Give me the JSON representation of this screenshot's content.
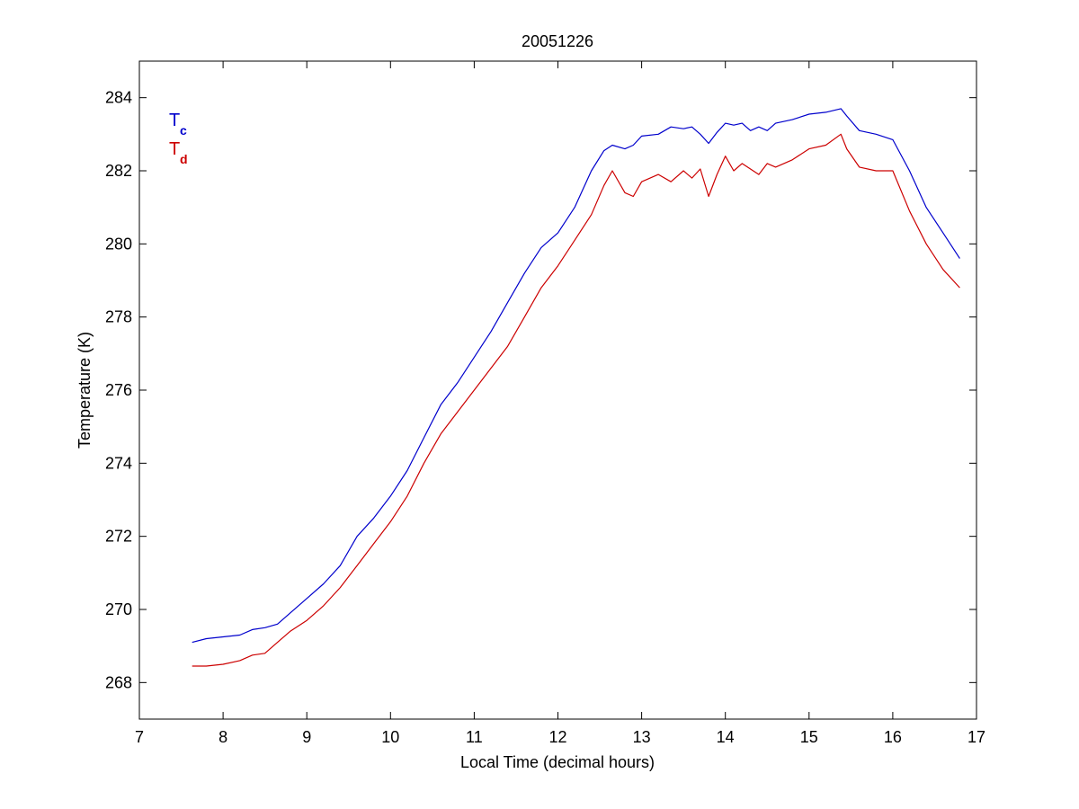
{
  "chart_data": {
    "type": "line",
    "title": "20051226",
    "xlabel": "Local Time (decimal hours)",
    "ylabel": "Temperature (K)",
    "xlim": [
      7,
      17
    ],
    "ylim": [
      267,
      285
    ],
    "xticks": [
      7,
      8,
      9,
      10,
      11,
      12,
      13,
      14,
      15,
      16,
      17
    ],
    "yticks": [
      268,
      270,
      272,
      274,
      276,
      278,
      280,
      282,
      284
    ],
    "grid": false,
    "legend_position": "top-left",
    "series": [
      {
        "name": "T",
        "name_subscript": "c",
        "color": "#0000cc",
        "x": [
          7.63,
          7.8,
          8.0,
          8.2,
          8.35,
          8.5,
          8.65,
          8.8,
          9.0,
          9.2,
          9.4,
          9.6,
          9.8,
          10.0,
          10.2,
          10.4,
          10.6,
          10.8,
          11.0,
          11.2,
          11.4,
          11.6,
          11.8,
          12.0,
          12.2,
          12.4,
          12.55,
          12.65,
          12.8,
          12.9,
          13.0,
          13.2,
          13.35,
          13.5,
          13.6,
          13.7,
          13.8,
          13.9,
          14.0,
          14.1,
          14.2,
          14.3,
          14.4,
          14.5,
          14.6,
          14.8,
          15.0,
          15.2,
          15.38,
          15.45,
          15.6,
          15.8,
          16.0,
          16.2,
          16.4,
          16.6,
          16.8
        ],
        "y": [
          269.1,
          269.2,
          269.25,
          269.3,
          269.45,
          269.5,
          269.6,
          269.9,
          270.3,
          270.7,
          271.2,
          272.0,
          272.5,
          273.1,
          273.8,
          274.7,
          275.6,
          276.2,
          276.9,
          277.6,
          278.4,
          279.2,
          279.9,
          280.3,
          281.0,
          282.0,
          282.55,
          282.7,
          282.6,
          282.7,
          282.95,
          283.0,
          283.2,
          283.15,
          283.2,
          283.0,
          282.75,
          283.05,
          283.3,
          283.25,
          283.3,
          283.1,
          283.2,
          283.1,
          283.3,
          283.4,
          283.55,
          283.6,
          283.7,
          283.5,
          283.1,
          283.0,
          282.85,
          282.0,
          281.0,
          280.3,
          279.6
        ]
      },
      {
        "name": "T",
        "name_subscript": "d",
        "color": "#cc0000",
        "x": [
          7.63,
          7.8,
          8.0,
          8.2,
          8.35,
          8.5,
          8.65,
          8.8,
          9.0,
          9.2,
          9.4,
          9.6,
          9.8,
          10.0,
          10.2,
          10.4,
          10.6,
          10.8,
          11.0,
          11.2,
          11.4,
          11.6,
          11.8,
          12.0,
          12.2,
          12.4,
          12.55,
          12.65,
          12.8,
          12.9,
          13.0,
          13.2,
          13.35,
          13.5,
          13.6,
          13.7,
          13.8,
          13.9,
          14.0,
          14.1,
          14.2,
          14.3,
          14.4,
          14.5,
          14.6,
          14.8,
          15.0,
          15.2,
          15.38,
          15.45,
          15.6,
          15.8,
          16.0,
          16.2,
          16.4,
          16.6,
          16.8
        ],
        "y": [
          268.45,
          268.45,
          268.5,
          268.6,
          268.75,
          268.8,
          269.1,
          269.4,
          269.7,
          270.1,
          270.6,
          271.2,
          271.8,
          272.4,
          273.1,
          274.0,
          274.8,
          275.4,
          276.0,
          276.6,
          277.2,
          278.0,
          278.8,
          279.4,
          280.1,
          280.8,
          281.6,
          282.0,
          281.4,
          281.3,
          281.7,
          281.9,
          281.7,
          282.0,
          281.8,
          282.05,
          281.3,
          281.9,
          282.4,
          282.0,
          282.2,
          282.05,
          281.9,
          282.2,
          282.1,
          282.3,
          282.6,
          282.7,
          283.0,
          282.6,
          282.1,
          282.0,
          282.0,
          280.9,
          280.0,
          279.3,
          278.8
        ]
      }
    ]
  }
}
